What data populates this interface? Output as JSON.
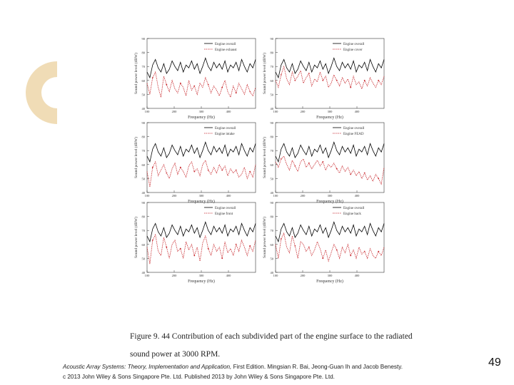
{
  "colors": {
    "decor": "#f0dcb6",
    "overall": "#000000",
    "part": "#c8292e",
    "axis": "#333333"
  },
  "caption": {
    "line1": "Figure 9. 44 Contribution of each subdivided part of the engine surface to the radiated",
    "line2": "sound power at 3000 RPM."
  },
  "footer": {
    "title": "Acoustic Array Systems: Theory, Implementation and Application,",
    "rest": " First Edition. Mingsian R. Bai, Jeong-Guan Ih and Jacob Benesty.",
    "copyright": "c 2013 John Wiley & Sons Singapore Pte. Ltd. Published 2013 by John Wiley & Sons Singapore Pte. Ltd."
  },
  "page_number": "49",
  "chart_data": [
    {
      "type": "line",
      "panel": "top-left",
      "ylabel": "Sound power level (dBW)",
      "xlabel": "Frequency (Hz)",
      "ylim": [
        40,
        90
      ],
      "yticks": [
        "90",
        "80",
        "70",
        "60",
        "50",
        "40"
      ],
      "xlim": [
        100,
        500
      ],
      "xticks": [
        "100",
        "200",
        "300",
        "400"
      ],
      "legend": [
        "Engine overall",
        "Engine exhaust"
      ],
      "series": [
        {
          "name": "Engine overall",
          "values": [
            66,
            62,
            71,
            75,
            69,
            66,
            72,
            65,
            68,
            74,
            70,
            67,
            73,
            66,
            71,
            69,
            74,
            68,
            72,
            65,
            70,
            76,
            70,
            67,
            73,
            69,
            72,
            68,
            74,
            66,
            71,
            69,
            73,
            67,
            75,
            70,
            66,
            72,
            69,
            75
          ]
        },
        {
          "name": "Engine exhaust",
          "values": [
            58,
            50,
            62,
            66,
            55,
            48,
            63,
            57,
            52,
            60,
            54,
            51,
            58,
            55,
            49,
            60,
            53,
            56,
            50,
            58,
            55,
            62,
            57,
            51,
            56,
            53,
            49,
            55,
            60,
            52,
            48,
            56,
            51,
            58,
            54,
            50,
            57,
            52,
            49,
            55
          ]
        }
      ]
    },
    {
      "type": "line",
      "panel": "top-right",
      "ylabel": "Sound power level (dBW)",
      "xlabel": "Frequency (Hz)",
      "ylim": [
        40,
        90
      ],
      "yticks": [
        "90",
        "80",
        "70",
        "60",
        "50",
        "40"
      ],
      "xlim": [
        100,
        500
      ],
      "xticks": [
        "100",
        "200",
        "300",
        "400"
      ],
      "legend": [
        "Engine overall",
        "Engine cover"
      ],
      "series": [
        {
          "name": "Engine overall",
          "values": [
            66,
            62,
            71,
            75,
            69,
            66,
            72,
            65,
            68,
            74,
            70,
            67,
            73,
            66,
            71,
            69,
            74,
            68,
            72,
            65,
            70,
            76,
            70,
            67,
            73,
            69,
            72,
            68,
            74,
            66,
            71,
            69,
            73,
            67,
            75,
            70,
            66,
            72,
            69,
            75
          ]
        },
        {
          "name": "Engine cover",
          "values": [
            60,
            55,
            64,
            70,
            61,
            57,
            66,
            60,
            63,
            67,
            58,
            62,
            65,
            56,
            61,
            59,
            66,
            60,
            63,
            55,
            58,
            64,
            60,
            56,
            62,
            58,
            61,
            55,
            63,
            57,
            59,
            54,
            60,
            56,
            62,
            58,
            55,
            60,
            57,
            63
          ]
        }
      ]
    },
    {
      "type": "line",
      "panel": "middle-left",
      "ylabel": "Sound power level (dBW)",
      "xlabel": "Frequency (Hz)",
      "ylim": [
        40,
        90
      ],
      "yticks": [
        "90",
        "80",
        "70",
        "60",
        "50",
        "40"
      ],
      "xlim": [
        100,
        500
      ],
      "xticks": [
        "100",
        "200",
        "300",
        "400"
      ],
      "legend": [
        "Engine overall",
        "Engine intake"
      ],
      "series": [
        {
          "name": "Engine overall",
          "values": [
            66,
            62,
            71,
            75,
            69,
            66,
            72,
            65,
            68,
            74,
            70,
            67,
            73,
            66,
            71,
            69,
            74,
            68,
            72,
            65,
            70,
            76,
            70,
            67,
            73,
            69,
            72,
            68,
            74,
            66,
            71,
            69,
            73,
            67,
            75,
            70,
            66,
            72,
            69,
            75
          ]
        },
        {
          "name": "Engine intake",
          "values": [
            55,
            44,
            58,
            62,
            52,
            56,
            60,
            54,
            50,
            57,
            61,
            53,
            58,
            55,
            51,
            59,
            62,
            55,
            57,
            52,
            60,
            63,
            56,
            53,
            58,
            54,
            60,
            56,
            59,
            52,
            57,
            54,
            56,
            51,
            53,
            58,
            50,
            55,
            51,
            60
          ]
        }
      ]
    },
    {
      "type": "line",
      "panel": "middle-right",
      "ylabel": "Sound power level (dBW)",
      "xlabel": "Frequency (Hz)",
      "ylim": [
        40,
        90
      ],
      "yticks": [
        "90",
        "80",
        "70",
        "60",
        "50",
        "40"
      ],
      "xlim": [
        100,
        500
      ],
      "xticks": [
        "100",
        "200",
        "300",
        "400"
      ],
      "legend": [
        "Engine overall",
        "Engine FEAD"
      ],
      "series": [
        {
          "name": "Engine overall",
          "values": [
            66,
            62,
            71,
            75,
            69,
            66,
            72,
            65,
            68,
            74,
            70,
            67,
            73,
            66,
            71,
            69,
            74,
            68,
            72,
            65,
            70,
            76,
            70,
            67,
            73,
            69,
            72,
            68,
            74,
            66,
            71,
            69,
            73,
            67,
            75,
            70,
            66,
            72,
            69,
            75
          ]
        },
        {
          "name": "Engine FEAD",
          "values": [
            62,
            58,
            64,
            66,
            60,
            56,
            63,
            59,
            55,
            62,
            64,
            58,
            61,
            57,
            60,
            63,
            59,
            62,
            56,
            60,
            58,
            61,
            57,
            54,
            59,
            55,
            58,
            53,
            56,
            52,
            55,
            50,
            54,
            49,
            52,
            48,
            53,
            50,
            46,
            58
          ]
        }
      ]
    },
    {
      "type": "line",
      "panel": "bottom-left",
      "ylabel": "Sound power level (dBW)",
      "xlabel": "Frequency (Hz)",
      "ylim": [
        40,
        90
      ],
      "yticks": [
        "90",
        "80",
        "70",
        "60",
        "50",
        "40"
      ],
      "xlim": [
        100,
        500
      ],
      "xticks": [
        "100",
        "200",
        "300",
        "400"
      ],
      "legend": [
        "Engine overall",
        "Engine front"
      ],
      "series": [
        {
          "name": "Engine overall",
          "values": [
            66,
            62,
            71,
            75,
            69,
            66,
            72,
            65,
            68,
            74,
            70,
            67,
            73,
            66,
            71,
            69,
            74,
            68,
            72,
            65,
            70,
            76,
            70,
            67,
            73,
            69,
            72,
            68,
            74,
            66,
            71,
            69,
            73,
            67,
            75,
            70,
            66,
            72,
            69,
            75
          ]
        },
        {
          "name": "Engine front",
          "values": [
            58,
            46,
            63,
            67,
            55,
            52,
            65,
            58,
            50,
            60,
            63,
            55,
            57,
            50,
            62,
            56,
            60,
            52,
            58,
            48,
            61,
            66,
            57,
            52,
            60,
            55,
            58,
            50,
            62,
            54,
            57,
            52,
            60,
            55,
            63,
            58,
            52,
            59,
            55,
            63
          ]
        }
      ]
    },
    {
      "type": "line",
      "panel": "bottom-right",
      "ylabel": "Sound power level (dBW)",
      "xlabel": "Frequency (Hz)",
      "ylim": [
        40,
        90
      ],
      "yticks": [
        "90",
        "80",
        "70",
        "60",
        "50",
        "40"
      ],
      "xlim": [
        100,
        500
      ],
      "xticks": [
        "100",
        "200",
        "300",
        "400"
      ],
      "legend": [
        "Engine overall",
        "Engine back"
      ],
      "series": [
        {
          "name": "Engine overall",
          "values": [
            66,
            62,
            71,
            75,
            69,
            66,
            72,
            65,
            68,
            74,
            70,
            67,
            73,
            66,
            71,
            69,
            74,
            68,
            72,
            65,
            70,
            76,
            70,
            67,
            73,
            69,
            72,
            68,
            74,
            66,
            71,
            69,
            73,
            67,
            75,
            70,
            66,
            72,
            69,
            75
          ]
        },
        {
          "name": "Engine back",
          "values": [
            60,
            50,
            64,
            68,
            58,
            54,
            66,
            59,
            50,
            62,
            60,
            55,
            58,
            52,
            56,
            62,
            57,
            50,
            56,
            48,
            54,
            60,
            56,
            50,
            58,
            54,
            60,
            52,
            56,
            50,
            58,
            53,
            55,
            50,
            57,
            52,
            50,
            55,
            52,
            58
          ]
        }
      ]
    }
  ]
}
